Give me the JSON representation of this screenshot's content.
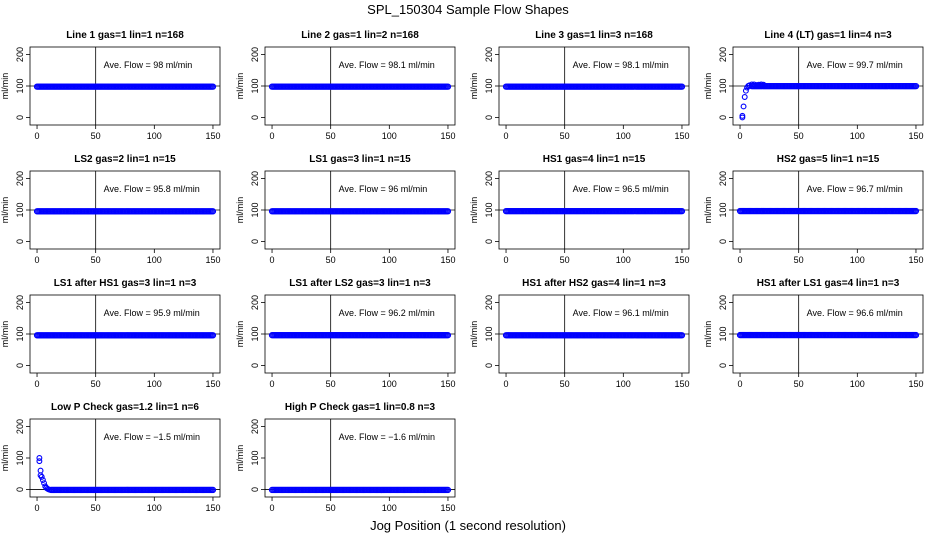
{
  "figure": {
    "title": "SPL_150304  Sample Flow Shapes",
    "xlabel": "Jog Position (1 second resolution)"
  },
  "chart_data": [
    {
      "type": "scatter",
      "title": "Line 1 gas=1 lin=1 n=168",
      "ylabel": "ml/min",
      "xlim": [
        0,
        150
      ],
      "ylim": [
        0,
        200
      ],
      "xticks": [
        0,
        50,
        100,
        150
      ],
      "yticks": [
        0,
        100,
        200
      ],
      "ave_flow_label": "Ave. Flow = 98  ml/min",
      "vline": 50,
      "hline": 100,
      "series": [
        {
          "color": "#0000ff",
          "shape": "steady",
          "level": 98,
          "x_start": 0,
          "x_end": 150
        }
      ]
    },
    {
      "type": "scatter",
      "title": "Line 2 gas=1 lin=2 n=168",
      "ylabel": "ml/min",
      "xlim": [
        0,
        150
      ],
      "ylim": [
        0,
        200
      ],
      "xticks": [
        0,
        50,
        100,
        150
      ],
      "yticks": [
        0,
        100,
        200
      ],
      "ave_flow_label": "Ave. Flow = 98.1  ml/min",
      "vline": 50,
      "hline": 100,
      "series": [
        {
          "color": "#0000ff",
          "shape": "steady",
          "level": 98.1,
          "x_start": 0,
          "x_end": 150
        }
      ]
    },
    {
      "type": "scatter",
      "title": "Line 3 gas=1 lin=3 n=168",
      "ylabel": "ml/min",
      "xlim": [
        0,
        150
      ],
      "ylim": [
        0,
        200
      ],
      "xticks": [
        0,
        50,
        100,
        150
      ],
      "yticks": [
        0,
        100,
        200
      ],
      "ave_flow_label": "Ave. Flow = 98.1  ml/min",
      "vline": 50,
      "hline": 100,
      "series": [
        {
          "color": "#0000ff",
          "shape": "steady",
          "level": 98.1,
          "x_start": 0,
          "x_end": 150
        }
      ]
    },
    {
      "type": "scatter",
      "title": "Line 4 (LT) gas=1 lin=4 n=3",
      "ylabel": "ml/min",
      "xlim": [
        0,
        150
      ],
      "ylim": [
        0,
        200
      ],
      "xticks": [
        0,
        50,
        100,
        150
      ],
      "yticks": [
        0,
        100,
        200
      ],
      "ave_flow_label": "Ave. Flow = 99.7  ml/min",
      "vline": 50,
      "hline": 100,
      "series": [
        {
          "color": "#0000ff",
          "shape": "steady",
          "level": 99.7,
          "x_start": 10,
          "x_end": 150,
          "points": [
            [
              2,
              0
            ],
            [
              2,
              5
            ],
            [
              3,
              35
            ],
            [
              4,
              65
            ],
            [
              5,
              85
            ],
            [
              6,
              95
            ],
            [
              7,
              100
            ],
            [
              8,
              102
            ],
            [
              10,
              105
            ],
            [
              12,
              105
            ],
            [
              14,
              103
            ],
            [
              16,
              104
            ],
            [
              18,
              105
            ],
            [
              20,
              104
            ]
          ]
        }
      ]
    },
    {
      "type": "scatter",
      "title": "LS2 gas=2 lin=1 n=15",
      "ylabel": "ml/min",
      "xlim": [
        0,
        150
      ],
      "ylim": [
        0,
        200
      ],
      "xticks": [
        0,
        50,
        100,
        150
      ],
      "yticks": [
        0,
        100,
        200
      ],
      "ave_flow_label": "Ave. Flow = 95.8  ml/min",
      "vline": 50,
      "hline": 100,
      "series": [
        {
          "color": "#0000ff",
          "shape": "steady",
          "level": 95.8,
          "x_start": 0,
          "x_end": 150
        }
      ]
    },
    {
      "type": "scatter",
      "title": "LS1 gas=3 lin=1 n=15",
      "ylabel": "ml/min",
      "xlim": [
        0,
        150
      ],
      "ylim": [
        0,
        200
      ],
      "xticks": [
        0,
        50,
        100,
        150
      ],
      "yticks": [
        0,
        100,
        200
      ],
      "ave_flow_label": "Ave. Flow = 96  ml/min",
      "vline": 50,
      "hline": 100,
      "series": [
        {
          "color": "#0000ff",
          "shape": "steady",
          "level": 96,
          "x_start": 0,
          "x_end": 150
        }
      ]
    },
    {
      "type": "scatter",
      "title": "HS1 gas=4 lin=1 n=15",
      "ylabel": "ml/min",
      "xlim": [
        0,
        150
      ],
      "ylim": [
        0,
        200
      ],
      "xticks": [
        0,
        50,
        100,
        150
      ],
      "yticks": [
        0,
        100,
        200
      ],
      "ave_flow_label": "Ave. Flow = 96.5  ml/min",
      "vline": 50,
      "hline": 100,
      "series": [
        {
          "color": "#0000ff",
          "shape": "steady",
          "level": 96.5,
          "x_start": 0,
          "x_end": 150
        }
      ]
    },
    {
      "type": "scatter",
      "title": "HS2 gas=5 lin=1 n=15",
      "ylabel": "ml/min",
      "xlim": [
        0,
        150
      ],
      "ylim": [
        0,
        200
      ],
      "xticks": [
        0,
        50,
        100,
        150
      ],
      "yticks": [
        0,
        100,
        200
      ],
      "ave_flow_label": "Ave. Flow = 96.7  ml/min",
      "vline": 50,
      "hline": 100,
      "series": [
        {
          "color": "#0000ff",
          "shape": "steady",
          "level": 96.7,
          "x_start": 0,
          "x_end": 150
        }
      ]
    },
    {
      "type": "scatter",
      "title": "LS1 after HS1 gas=3 lin=1 n=3",
      "ylabel": "ml/min",
      "xlim": [
        0,
        150
      ],
      "ylim": [
        0,
        200
      ],
      "xticks": [
        0,
        50,
        100,
        150
      ],
      "yticks": [
        0,
        100,
        200
      ],
      "ave_flow_label": "Ave. Flow = 95.9  ml/min",
      "vline": 50,
      "hline": 100,
      "series": [
        {
          "color": "#0000ff",
          "shape": "steady",
          "level": 95.9,
          "x_start": 0,
          "x_end": 150
        }
      ]
    },
    {
      "type": "scatter",
      "title": "LS1 after LS2 gas=3 lin=1 n=3",
      "ylabel": "ml/min",
      "xlim": [
        0,
        150
      ],
      "ylim": [
        0,
        200
      ],
      "xticks": [
        0,
        50,
        100,
        150
      ],
      "yticks": [
        0,
        100,
        200
      ],
      "ave_flow_label": "Ave. Flow = 96.2  ml/min",
      "vline": 50,
      "hline": 100,
      "series": [
        {
          "color": "#0000ff",
          "shape": "steady",
          "level": 96.2,
          "x_start": 0,
          "x_end": 150
        }
      ]
    },
    {
      "type": "scatter",
      "title": "HS1 after HS2 gas=4 lin=1 n=3",
      "ylabel": "ml/min",
      "xlim": [
        0,
        150
      ],
      "ylim": [
        0,
        200
      ],
      "xticks": [
        0,
        50,
        100,
        150
      ],
      "yticks": [
        0,
        100,
        200
      ],
      "ave_flow_label": "Ave. Flow = 96.1  ml/min",
      "vline": 50,
      "hline": 100,
      "series": [
        {
          "color": "#0000ff",
          "shape": "steady",
          "level": 96.1,
          "x_start": 0,
          "x_end": 150
        }
      ]
    },
    {
      "type": "scatter",
      "title": "HS1 after LS1 gas=4 lin=1 n=3",
      "ylabel": "ml/min",
      "xlim": [
        0,
        150
      ],
      "ylim": [
        0,
        200
      ],
      "xticks": [
        0,
        50,
        100,
        150
      ],
      "yticks": [
        0,
        100,
        200
      ],
      "ave_flow_label": "Ave. Flow = 96.6  ml/min",
      "vline": 50,
      "hline": 100,
      "series": [
        {
          "color": "#0000ff",
          "shape": "steady",
          "level": 96.6,
          "x_start": 0,
          "x_end": 150
        }
      ]
    },
    {
      "type": "scatter",
      "title": "Low P Check gas=1.2 lin=1 n=6",
      "ylabel": "ml/min",
      "xlim": [
        0,
        150
      ],
      "ylim": [
        0,
        200
      ],
      "xticks": [
        0,
        50,
        100,
        150
      ],
      "yticks": [
        0,
        100,
        200
      ],
      "ave_flow_label": "Ave. Flow = −1.5  ml/min",
      "vline": 50,
      "hline": 0,
      "series": [
        {
          "color": "#0000ff",
          "shape": "steady",
          "level": -1.5,
          "x_start": 12,
          "x_end": 150,
          "points": [
            [
              2,
              100
            ],
            [
              2,
              90
            ],
            [
              3,
              60
            ],
            [
              3,
              45
            ],
            [
              4,
              40
            ],
            [
              5,
              30
            ],
            [
              6,
              20
            ],
            [
              7,
              10
            ],
            [
              8,
              5
            ],
            [
              9,
              2
            ],
            [
              10,
              0
            ],
            [
              11,
              -1
            ]
          ]
        }
      ]
    },
    {
      "type": "scatter",
      "title": "High P Check gas=1 lin=0.8 n=3",
      "ylabel": "ml/min",
      "xlim": [
        0,
        150
      ],
      "ylim": [
        0,
        200
      ],
      "xticks": [
        0,
        50,
        100,
        150
      ],
      "yticks": [
        0,
        100,
        200
      ],
      "ave_flow_label": "Ave. Flow = −1.6  ml/min",
      "vline": 50,
      "hline": 0,
      "series": [
        {
          "color": "#0000ff",
          "shape": "steady",
          "level": -1.6,
          "x_start": 0,
          "x_end": 150
        }
      ]
    }
  ]
}
